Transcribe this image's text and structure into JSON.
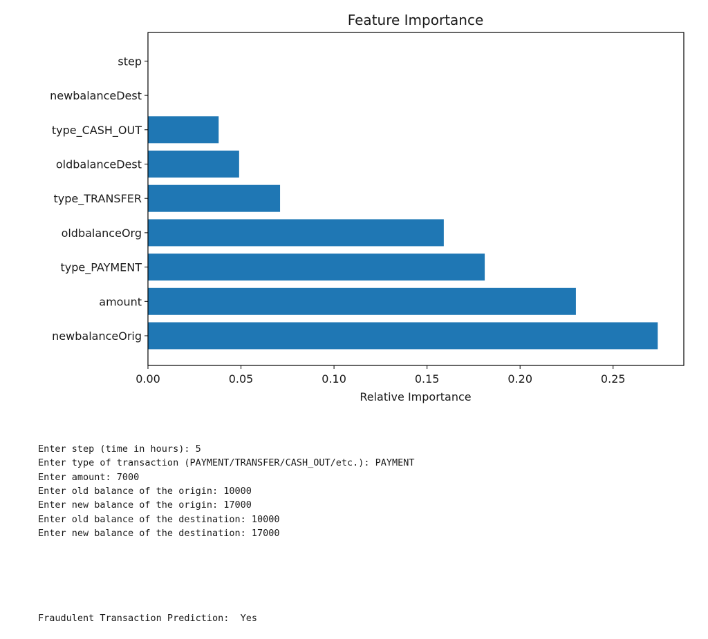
{
  "chart_data": {
    "type": "bar",
    "orientation": "horizontal",
    "title": "Feature Importance",
    "xlabel": "Relative Importance",
    "ylabel": "",
    "categories": [
      "newbalanceOrig",
      "amount",
      "type_PAYMENT",
      "oldbalanceOrg",
      "type_TRANSFER",
      "oldbalanceDest",
      "type_CASH_OUT",
      "newbalanceDest",
      "step"
    ],
    "values": [
      0.274,
      0.23,
      0.181,
      0.159,
      0.071,
      0.049,
      0.038,
      0.0,
      0.0
    ],
    "xlim": [
      0,
      0.288
    ],
    "xticks": [
      0.0,
      0.05,
      0.1,
      0.15,
      0.2,
      0.25
    ],
    "xtick_labels": [
      "0.00",
      "0.05",
      "0.10",
      "0.15",
      "0.20",
      "0.25"
    ],
    "bar_color": "#1f77b4",
    "grid": false
  },
  "console": {
    "lines": [
      "Enter step (time in hours): 5",
      "Enter type of transaction (PAYMENT/TRANSFER/CASH_OUT/etc.): PAYMENT",
      "Enter amount: 7000",
      "Enter old balance of the origin: 10000",
      "Enter new balance of the origin: 17000",
      "Enter old balance of the destination: 10000",
      "Enter new balance of the destination: 17000"
    ],
    "prediction": "Fraudulent Transaction Prediction:  Yes"
  }
}
